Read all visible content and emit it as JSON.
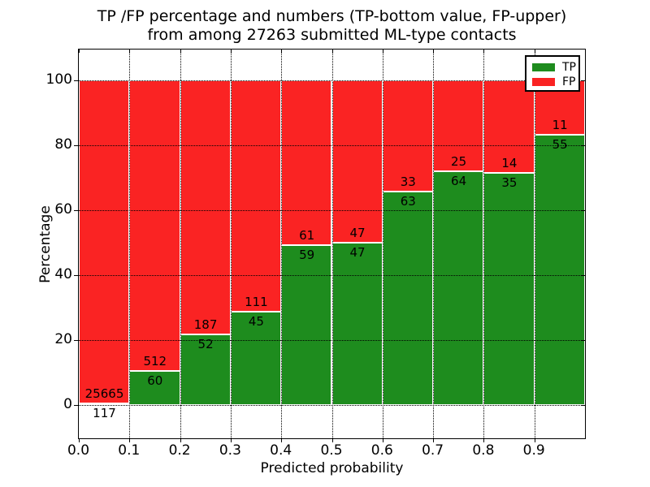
{
  "title": {
    "line1": "TP /FP percentage and numbers (TP-bottom value, FP-upper)",
    "line2": "from among 27263 submitted ML-type contacts"
  },
  "axes": {
    "xlabel": "Predicted probability",
    "ylabel": "Percentage",
    "x_tick_labels": [
      "0.0",
      "0.1",
      "0.2",
      "0.3",
      "0.4",
      "0.5",
      "0.6",
      "0.7",
      "0.8",
      "0.9"
    ],
    "y_tick_labels": [
      "0",
      "20",
      "40",
      "60",
      "80",
      "100"
    ],
    "y_tick_values": [
      0,
      20,
      40,
      60,
      80,
      100
    ]
  },
  "legend": {
    "entries": [
      {
        "label": "TP",
        "color": "#1E8C1E"
      },
      {
        "label": "FP",
        "color": "#FA2323"
      }
    ]
  },
  "chart_data": {
    "type": "bar",
    "stacked": true,
    "title": "TP /FP percentage and numbers (TP-bottom value, FP-upper) from among 27263 submitted ML-type contacts",
    "xlabel": "Predicted probability",
    "ylabel": "Percentage",
    "total_contacts": 27263,
    "x_bin_start": [
      0.0,
      0.1,
      0.2,
      0.3,
      0.4,
      0.5,
      0.6,
      0.7,
      0.8,
      0.9
    ],
    "bin_width": 0.1,
    "series": [
      {
        "name": "TP",
        "color": "#1E8C1E",
        "counts": [
          117,
          60,
          52,
          45,
          59,
          47,
          63,
          64,
          35,
          55
        ]
      },
      {
        "name": "FP",
        "color": "#FA2323",
        "counts": [
          25665,
          512,
          187,
          111,
          61,
          47,
          33,
          25,
          14,
          11
        ]
      }
    ],
    "tp_percent": [
      0.45,
      10.49,
      21.76,
      28.85,
      49.17,
      50.0,
      65.63,
      71.91,
      71.43,
      83.33
    ],
    "xlim": [
      0.0,
      1.0
    ],
    "ylim": [
      -10.5,
      109.5
    ],
    "grid": "dotted-black",
    "legend_position": "upper-right",
    "bar_edge_color": "#ffffff"
  }
}
